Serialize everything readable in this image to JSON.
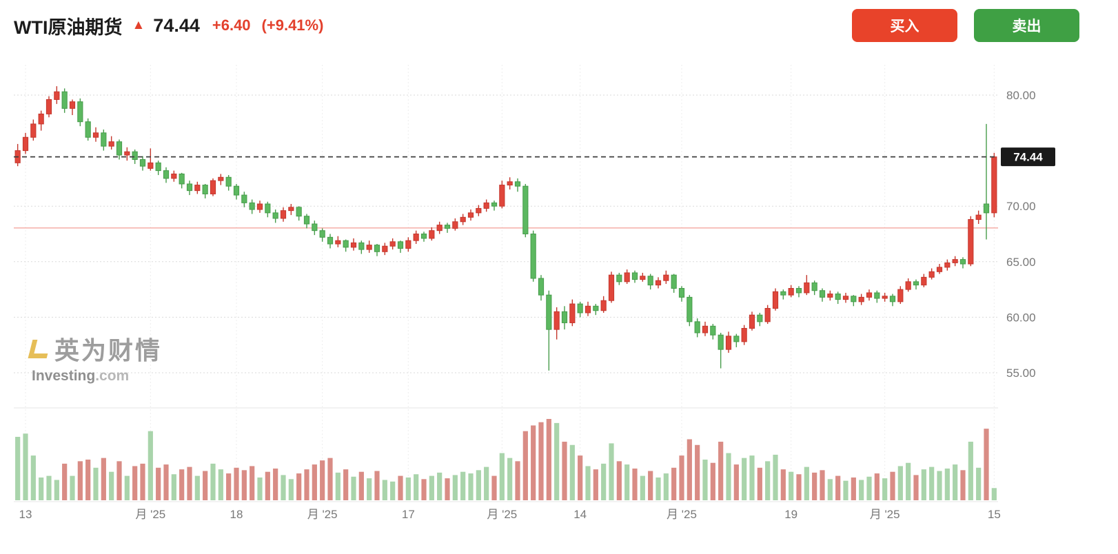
{
  "header": {
    "title": "WTI原油期货",
    "arrow": "▲",
    "price": "74.44",
    "change": "+6.40",
    "change_percent": "(+9.41%)",
    "buy_label": "买入",
    "sell_label": "卖出",
    "buy_color": "#e8432a",
    "sell_color": "#3fa044",
    "change_color": "#e3402c"
  },
  "watermark": {
    "brand": "英为财情",
    "site_bold": "Investing",
    "site_suffix": ".com"
  },
  "chart_data": {
    "type": "candlestick",
    "title": "WTI原油期货",
    "subtitle": "",
    "legend": [],
    "grid": true,
    "axis_position": "right",
    "ohlcv_format": [
      "open",
      "high",
      "low",
      "close",
      "volume"
    ],
    "current_price": 74.44,
    "current_price_label": "74.44",
    "previous_close": 68.04,
    "volume_max": 100,
    "y_range": [
      52,
      83.5
    ],
    "y_ticks": [
      {
        "v": 80,
        "label": "80.00"
      },
      {
        "v": 70,
        "label": "70.00"
      },
      {
        "v": 65,
        "label": "65.00"
      },
      {
        "v": 60,
        "label": "60.00"
      },
      {
        "v": 55,
        "label": "55.00"
      }
    ],
    "x_ticks": [
      {
        "i": 1,
        "label": "13"
      },
      {
        "i": 17,
        "label": "月 '25"
      },
      {
        "i": 28,
        "label": "18"
      },
      {
        "i": 39,
        "label": "月 '25"
      },
      {
        "i": 50,
        "label": "17"
      },
      {
        "i": 62,
        "label": "月 '25"
      },
      {
        "i": 72,
        "label": "14"
      },
      {
        "i": 85,
        "label": "月 '25"
      },
      {
        "i": 99,
        "label": "19"
      },
      {
        "i": 111,
        "label": "月 '25"
      },
      {
        "i": 125,
        "label": "15"
      }
    ],
    "colors": {
      "up": "#e0463b",
      "up_stroke": "#c4372d",
      "down": "#5cb860",
      "down_stroke": "#479c4b",
      "vol_up": "#a9d4ab",
      "vol_down": "#d98c85",
      "grid": "#dadada",
      "grid_vertical": "#ededed",
      "axis_text": "#787878",
      "dash_line": "#3c3c3c",
      "prev_close_line": "#f5a79f",
      "badge_bg": "#1a1a1a",
      "badge_text": "#ffffff",
      "separator": "#e4e4e4"
    },
    "candles": [
      [
        73.9,
        75.6,
        73.6,
        75.0,
        78
      ],
      [
        75.0,
        76.6,
        74.7,
        76.2,
        82
      ],
      [
        76.2,
        77.8,
        75.9,
        77.4,
        55
      ],
      [
        77.4,
        78.6,
        76.8,
        78.3,
        28
      ],
      [
        78.3,
        79.9,
        78.0,
        79.6,
        30
      ],
      [
        79.6,
        80.8,
        79.2,
        80.3,
        25
      ],
      [
        80.3,
        80.6,
        78.4,
        78.8,
        45
      ],
      [
        78.8,
        79.6,
        78.2,
        79.4,
        30
      ],
      [
        79.4,
        79.7,
        77.2,
        77.6,
        48
      ],
      [
        77.6,
        77.9,
        75.9,
        76.2,
        50
      ],
      [
        76.2,
        77.1,
        75.8,
        76.6,
        40
      ],
      [
        76.6,
        76.9,
        75.0,
        75.4,
        52
      ],
      [
        75.4,
        76.3,
        75.1,
        75.8,
        35
      ],
      [
        75.8,
        76.0,
        74.2,
        74.6,
        48
      ],
      [
        74.6,
        75.3,
        74.1,
        74.9,
        30
      ],
      [
        74.9,
        75.1,
        73.8,
        74.2,
        42
      ],
      [
        74.2,
        74.5,
        73.2,
        73.6,
        45
      ],
      [
        73.4,
        75.2,
        73.2,
        73.9,
        85
      ],
      [
        73.9,
        74.1,
        72.8,
        73.2,
        40
      ],
      [
        73.2,
        73.5,
        72.1,
        72.5,
        44
      ],
      [
        72.5,
        73.2,
        72.2,
        72.9,
        32
      ],
      [
        72.9,
        73.0,
        71.6,
        72.0,
        38
      ],
      [
        72.0,
        72.3,
        71.0,
        71.4,
        41
      ],
      [
        71.4,
        72.2,
        71.1,
        71.9,
        30
      ],
      [
        71.9,
        72.0,
        70.7,
        71.1,
        36
      ],
      [
        71.1,
        72.5,
        70.9,
        72.3,
        45
      ],
      [
        72.3,
        72.9,
        71.9,
        72.6,
        38
      ],
      [
        72.6,
        72.8,
        71.4,
        71.8,
        33
      ],
      [
        71.8,
        72.0,
        70.6,
        71.0,
        40
      ],
      [
        71.0,
        71.3,
        69.9,
        70.3,
        37
      ],
      [
        70.3,
        70.6,
        69.3,
        69.7,
        42
      ],
      [
        69.7,
        70.5,
        69.4,
        70.2,
        28
      ],
      [
        70.2,
        70.4,
        69.0,
        69.4,
        35
      ],
      [
        69.4,
        69.7,
        68.5,
        68.9,
        39
      ],
      [
        68.9,
        69.9,
        68.6,
        69.6,
        31
      ],
      [
        69.6,
        70.2,
        69.2,
        69.9,
        26
      ],
      [
        69.9,
        70.0,
        68.7,
        69.1,
        33
      ],
      [
        69.1,
        69.3,
        68.0,
        68.4,
        38
      ],
      [
        68.4,
        68.7,
        67.4,
        67.8,
        44
      ],
      [
        67.8,
        68.0,
        66.8,
        67.2,
        49
      ],
      [
        67.2,
        67.5,
        66.2,
        66.6,
        52
      ],
      [
        66.6,
        67.3,
        66.3,
        66.9,
        34
      ],
      [
        66.9,
        67.0,
        65.9,
        66.3,
        38
      ],
      [
        66.3,
        67.1,
        66.0,
        66.7,
        29
      ],
      [
        66.7,
        66.9,
        65.7,
        66.1,
        35
      ],
      [
        66.1,
        66.9,
        65.8,
        66.5,
        27
      ],
      [
        66.5,
        66.6,
        65.5,
        65.9,
        36
      ],
      [
        65.9,
        66.7,
        65.6,
        66.4,
        25
      ],
      [
        66.4,
        67.1,
        66.1,
        66.8,
        23
      ],
      [
        66.8,
        66.9,
        65.8,
        66.2,
        30
      ],
      [
        66.2,
        67.2,
        65.9,
        66.9,
        28
      ],
      [
        66.9,
        67.8,
        66.6,
        67.5,
        32
      ],
      [
        67.5,
        67.7,
        66.8,
        67.1,
        26
      ],
      [
        67.1,
        68.1,
        66.9,
        67.8,
        30
      ],
      [
        67.8,
        68.6,
        67.5,
        68.3,
        34
      ],
      [
        68.3,
        68.5,
        67.6,
        68.0,
        27
      ],
      [
        68.0,
        68.9,
        67.8,
        68.6,
        31
      ],
      [
        68.6,
        69.3,
        68.3,
        69.0,
        35
      ],
      [
        69.0,
        69.7,
        68.7,
        69.4,
        33
      ],
      [
        69.4,
        70.1,
        69.1,
        69.8,
        37
      ],
      [
        69.8,
        70.6,
        69.5,
        70.3,
        41
      ],
      [
        70.3,
        70.5,
        69.6,
        70.0,
        30
      ],
      [
        70.0,
        72.3,
        69.8,
        71.9,
        58
      ],
      [
        71.9,
        72.6,
        71.5,
        72.2,
        52
      ],
      [
        72.2,
        72.5,
        71.3,
        71.8,
        48
      ],
      [
        71.8,
        72.0,
        67.2,
        67.5,
        85
      ],
      [
        67.5,
        67.8,
        63.2,
        63.5,
        92
      ],
      [
        63.5,
        63.8,
        61.5,
        62.0,
        96
      ],
      [
        62.0,
        62.4,
        55.2,
        58.9,
        100
      ],
      [
        58.9,
        60.9,
        58.0,
        60.5,
        95
      ],
      [
        60.5,
        61.0,
        58.9,
        59.5,
        72
      ],
      [
        59.5,
        61.6,
        59.2,
        61.2,
        68
      ],
      [
        61.2,
        61.4,
        60.0,
        60.4,
        55
      ],
      [
        60.4,
        61.4,
        60.1,
        61.0,
        42
      ],
      [
        61.0,
        61.2,
        60.2,
        60.6,
        38
      ],
      [
        60.6,
        61.9,
        60.4,
        61.5,
        45
      ],
      [
        61.5,
        64.1,
        61.3,
        63.8,
        70
      ],
      [
        63.8,
        64.0,
        62.9,
        63.2,
        48
      ],
      [
        63.2,
        64.3,
        63.0,
        64.0,
        44
      ],
      [
        64.0,
        64.2,
        63.1,
        63.4,
        39
      ],
      [
        63.4,
        64.0,
        63.2,
        63.7,
        30
      ],
      [
        63.7,
        63.9,
        62.5,
        62.9,
        36
      ],
      [
        62.9,
        63.6,
        62.6,
        63.3,
        28
      ],
      [
        63.3,
        64.2,
        63.0,
        63.8,
        33
      ],
      [
        63.8,
        63.9,
        62.2,
        62.6,
        40
      ],
      [
        62.6,
        62.8,
        61.4,
        61.8,
        55
      ],
      [
        61.8,
        62.0,
        59.2,
        59.6,
        75
      ],
      [
        59.6,
        59.9,
        58.2,
        58.6,
        68
      ],
      [
        58.6,
        59.6,
        58.3,
        59.2,
        50
      ],
      [
        59.2,
        59.4,
        58.0,
        58.4,
        46
      ],
      [
        58.4,
        58.6,
        55.4,
        57.1,
        72
      ],
      [
        57.1,
        58.7,
        56.8,
        58.3,
        58
      ],
      [
        58.3,
        58.5,
        57.3,
        57.8,
        44
      ],
      [
        57.8,
        59.3,
        57.5,
        59.0,
        52
      ],
      [
        59.0,
        60.5,
        58.8,
        60.2,
        55
      ],
      [
        60.2,
        60.4,
        59.2,
        59.6,
        40
      ],
      [
        59.6,
        61.1,
        59.4,
        60.8,
        48
      ],
      [
        60.8,
        62.6,
        60.6,
        62.3,
        56
      ],
      [
        62.3,
        62.5,
        61.6,
        62.0,
        38
      ],
      [
        62.0,
        62.9,
        61.8,
        62.6,
        35
      ],
      [
        62.6,
        62.8,
        61.8,
        62.2,
        32
      ],
      [
        62.2,
        63.8,
        62.0,
        63.1,
        41
      ],
      [
        63.1,
        63.3,
        62.0,
        62.4,
        34
      ],
      [
        62.4,
        62.6,
        61.4,
        61.8,
        37
      ],
      [
        61.8,
        62.4,
        61.5,
        62.1,
        26
      ],
      [
        62.1,
        62.3,
        61.2,
        61.6,
        30
      ],
      [
        61.6,
        62.2,
        61.3,
        61.9,
        24
      ],
      [
        61.9,
        62.0,
        61.0,
        61.4,
        28
      ],
      [
        61.4,
        62.1,
        61.1,
        61.8,
        25
      ],
      [
        61.8,
        62.5,
        61.5,
        62.2,
        29
      ],
      [
        62.2,
        62.4,
        61.3,
        61.7,
        33
      ],
      [
        61.7,
        62.2,
        61.4,
        61.9,
        27
      ],
      [
        61.9,
        62.1,
        61.0,
        61.4,
        35
      ],
      [
        61.4,
        62.8,
        61.2,
        62.5,
        42
      ],
      [
        62.5,
        63.5,
        62.3,
        63.2,
        46
      ],
      [
        63.2,
        63.4,
        62.5,
        62.9,
        31
      ],
      [
        62.9,
        63.9,
        62.7,
        63.6,
        38
      ],
      [
        63.6,
        64.4,
        63.4,
        64.1,
        41
      ],
      [
        64.1,
        64.8,
        63.9,
        64.5,
        36
      ],
      [
        64.5,
        65.2,
        64.2,
        64.9,
        39
      ],
      [
        64.9,
        65.5,
        64.6,
        65.2,
        44
      ],
      [
        65.2,
        65.4,
        64.4,
        64.8,
        37
      ],
      [
        64.8,
        69.1,
        64.6,
        68.8,
        72
      ],
      [
        68.8,
        69.6,
        68.4,
        69.2,
        40
      ],
      [
        70.2,
        77.4,
        67.0,
        69.4,
        88
      ],
      [
        69.4,
        74.8,
        69.0,
        74.44,
        15
      ]
    ]
  }
}
